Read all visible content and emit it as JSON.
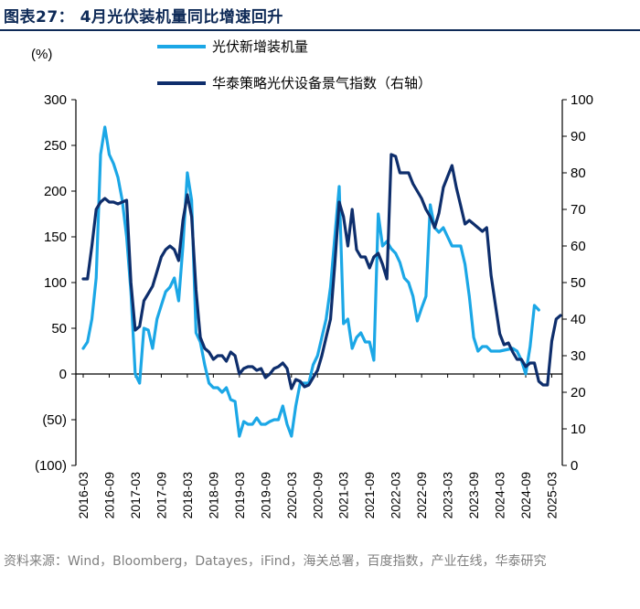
{
  "figure": {
    "title": "图表27：  4月光伏装机量同比增速回升",
    "source": "资料来源：Wind，Bloomberg，Datayes，iFind，海关总署，百度指数，产业在线，华泰研究"
  },
  "colors": {
    "title": "#0e2a57",
    "series_light": "#1ba7e6",
    "series_dark": "#0e2e6c",
    "axis": "#000000"
  },
  "chart_data": {
    "type": "line",
    "left_axis_unit": "(%)",
    "y_left": {
      "min": -100,
      "max": 300,
      "ticks": [
        300,
        250,
        200,
        150,
        100,
        50,
        0,
        -50,
        -100
      ],
      "tick_labels": [
        "300",
        "250",
        "200",
        "150",
        "100",
        "50",
        "0",
        "(50)",
        "(100)"
      ]
    },
    "y_right": {
      "min": 0,
      "max": 100,
      "ticks": [
        100,
        90,
        80,
        70,
        60,
        50,
        40,
        30,
        20,
        10,
        0
      ],
      "tick_labels": [
        "100",
        "90",
        "80",
        "70",
        "60",
        "50",
        "40",
        "30",
        "20",
        "10",
        "0"
      ]
    },
    "x_tick_labels": [
      "2016-03",
      "2016-09",
      "2017-03",
      "2017-09",
      "2018-03",
      "2018-09",
      "2019-03",
      "2019-09",
      "2020-03",
      "2020-09",
      "2021-03",
      "2021-09",
      "2022-03",
      "2022-09",
      "2023-03",
      "2023-09",
      "2024-03",
      "2024-09",
      "2025-03"
    ],
    "x_start": "2016-03",
    "x_count": 111,
    "series": [
      {
        "name": "光伏新增装机量",
        "axis": "left",
        "color": "#1ba7e6",
        "points": [
          [
            0,
            28
          ],
          [
            1,
            35
          ],
          [
            2,
            60
          ],
          [
            3,
            105
          ],
          [
            4,
            240
          ],
          [
            5,
            270
          ],
          [
            6,
            240
          ],
          [
            7,
            230
          ],
          [
            8,
            215
          ],
          [
            9,
            190
          ],
          [
            10,
            150
          ],
          [
            11,
            90
          ],
          [
            12,
            0
          ],
          [
            13,
            -10
          ],
          [
            14,
            50
          ],
          [
            15,
            48
          ],
          [
            16,
            28
          ],
          [
            17,
            60
          ],
          [
            18,
            75
          ],
          [
            19,
            90
          ],
          [
            20,
            95
          ],
          [
            21,
            105
          ],
          [
            22,
            80
          ],
          [
            23,
            140
          ],
          [
            24,
            220
          ],
          [
            25,
            190
          ],
          [
            26,
            45
          ],
          [
            27,
            35
          ],
          [
            28,
            10
          ],
          [
            29,
            -10
          ],
          [
            30,
            -15
          ],
          [
            31,
            -15
          ],
          [
            32,
            -20
          ],
          [
            33,
            -15
          ],
          [
            34,
            -28
          ],
          [
            35,
            -30
          ],
          [
            36,
            -68
          ],
          [
            37,
            -52
          ],
          [
            38,
            -55
          ],
          [
            39,
            -55
          ],
          [
            40,
            -48
          ],
          [
            41,
            -55
          ],
          [
            42,
            -55
          ],
          [
            43,
            -52
          ],
          [
            44,
            -50
          ],
          [
            45,
            -50
          ],
          [
            46,
            -35
          ],
          [
            47,
            -55
          ],
          [
            48,
            -68
          ],
          [
            49,
            -35
          ],
          [
            50,
            -10
          ],
          [
            51,
            -10
          ],
          [
            52,
            -10
          ],
          [
            53,
            10
          ],
          [
            54,
            20
          ],
          [
            55,
            40
          ],
          [
            56,
            60
          ],
          [
            57,
            95
          ],
          [
            58,
            150
          ],
          [
            59,
            205
          ],
          [
            60,
            55
          ],
          [
            61,
            60
          ],
          [
            62,
            28
          ],
          [
            63,
            40
          ],
          [
            64,
            45
          ],
          [
            65,
            35
          ],
          [
            66,
            35
          ],
          [
            67,
            15
          ],
          [
            68,
            175
          ],
          [
            69,
            140
          ],
          [
            70,
            145
          ],
          [
            71,
            137
          ],
          [
            72,
            132
          ],
          [
            73,
            122
          ],
          [
            74,
            105
          ],
          [
            75,
            100
          ],
          [
            76,
            85
          ],
          [
            77,
            58
          ],
          [
            78,
            72
          ],
          [
            79,
            85
          ],
          [
            80,
            185
          ],
          [
            81,
            160
          ],
          [
            82,
            155
          ],
          [
            83,
            160
          ],
          [
            84,
            150
          ],
          [
            85,
            140
          ],
          [
            86,
            140
          ],
          [
            87,
            140
          ],
          [
            88,
            120
          ],
          [
            89,
            85
          ],
          [
            90,
            40
          ],
          [
            91,
            25
          ],
          [
            92,
            30
          ],
          [
            93,
            30
          ],
          [
            94,
            25
          ],
          [
            95,
            25
          ],
          [
            96,
            25
          ],
          [
            97,
            26
          ],
          [
            98,
            27
          ],
          [
            99,
            28
          ],
          [
            100,
            25
          ],
          [
            101,
            15
          ],
          [
            102,
            0
          ],
          [
            103,
            30
          ],
          [
            104,
            75
          ],
          [
            105,
            70
          ]
        ]
      },
      {
        "name": "华泰策略光伏设备景气指数（右轴）",
        "axis": "right",
        "color": "#0e2e6c",
        "points": [
          [
            0,
            51
          ],
          [
            1,
            51
          ],
          [
            2,
            60
          ],
          [
            3,
            70
          ],
          [
            4,
            72
          ],
          [
            5,
            73
          ],
          [
            6,
            72
          ],
          [
            7,
            72
          ],
          [
            8,
            71.5
          ],
          [
            9,
            72
          ],
          [
            10,
            72.5
          ],
          [
            11,
            50
          ],
          [
            12,
            37
          ],
          [
            13,
            38
          ],
          [
            14,
            45
          ],
          [
            15,
            47
          ],
          [
            16,
            49
          ],
          [
            17,
            53
          ],
          [
            18,
            57
          ],
          [
            19,
            59
          ],
          [
            20,
            60
          ],
          [
            21,
            59
          ],
          [
            22,
            56
          ],
          [
            23,
            67
          ],
          [
            24,
            74
          ],
          [
            25,
            68
          ],
          [
            26,
            48
          ],
          [
            27,
            35
          ],
          [
            28,
            32
          ],
          [
            29,
            31
          ],
          [
            30,
            29
          ],
          [
            31,
            30
          ],
          [
            32,
            30
          ],
          [
            33,
            28.5
          ],
          [
            34,
            31
          ],
          [
            35,
            30
          ],
          [
            36,
            25
          ],
          [
            37,
            26.5
          ],
          [
            38,
            27
          ],
          [
            39,
            27
          ],
          [
            40,
            26
          ],
          [
            41,
            26.5
          ],
          [
            42,
            24
          ],
          [
            43,
            25
          ],
          [
            44,
            26.5
          ],
          [
            45,
            27
          ],
          [
            46,
            28
          ],
          [
            47,
            26.5
          ],
          [
            48,
            21
          ],
          [
            49,
            23.5
          ],
          [
            50,
            23
          ],
          [
            51,
            21.5
          ],
          [
            52,
            22
          ],
          [
            53,
            24
          ],
          [
            54,
            26
          ],
          [
            55,
            30
          ],
          [
            56,
            35
          ],
          [
            57,
            40
          ],
          [
            58,
            55
          ],
          [
            59,
            72
          ],
          [
            60,
            68
          ],
          [
            61,
            60
          ],
          [
            62,
            70
          ],
          [
            63,
            59
          ],
          [
            64,
            57
          ],
          [
            65,
            57
          ],
          [
            66,
            54
          ],
          [
            67,
            57
          ],
          [
            68,
            58
          ],
          [
            69,
            55
          ],
          [
            70,
            51
          ],
          [
            71,
            85
          ],
          [
            72,
            84.5
          ],
          [
            73,
            80
          ],
          [
            74,
            80
          ],
          [
            75,
            80
          ],
          [
            76,
            77
          ],
          [
            77,
            75
          ],
          [
            78,
            73
          ],
          [
            79,
            70
          ],
          [
            80,
            68
          ],
          [
            81,
            65
          ],
          [
            82,
            69
          ],
          [
            83,
            76
          ],
          [
            84,
            79
          ],
          [
            85,
            82
          ],
          [
            86,
            76
          ],
          [
            87,
            71
          ],
          [
            88,
            66
          ],
          [
            89,
            67
          ],
          [
            90,
            66
          ],
          [
            91,
            65
          ],
          [
            92,
            64
          ],
          [
            93,
            65
          ],
          [
            94,
            52
          ],
          [
            95,
            44
          ],
          [
            96,
            36
          ],
          [
            97,
            33
          ],
          [
            98,
            33.5
          ],
          [
            99,
            31
          ],
          [
            100,
            29
          ],
          [
            101,
            29
          ],
          [
            102,
            27
          ],
          [
            103,
            28
          ],
          [
            104,
            28
          ],
          [
            105,
            23
          ],
          [
            106,
            22
          ],
          [
            107,
            22
          ],
          [
            108,
            34
          ],
          [
            109,
            40
          ],
          [
            110,
            41
          ]
        ]
      }
    ]
  }
}
